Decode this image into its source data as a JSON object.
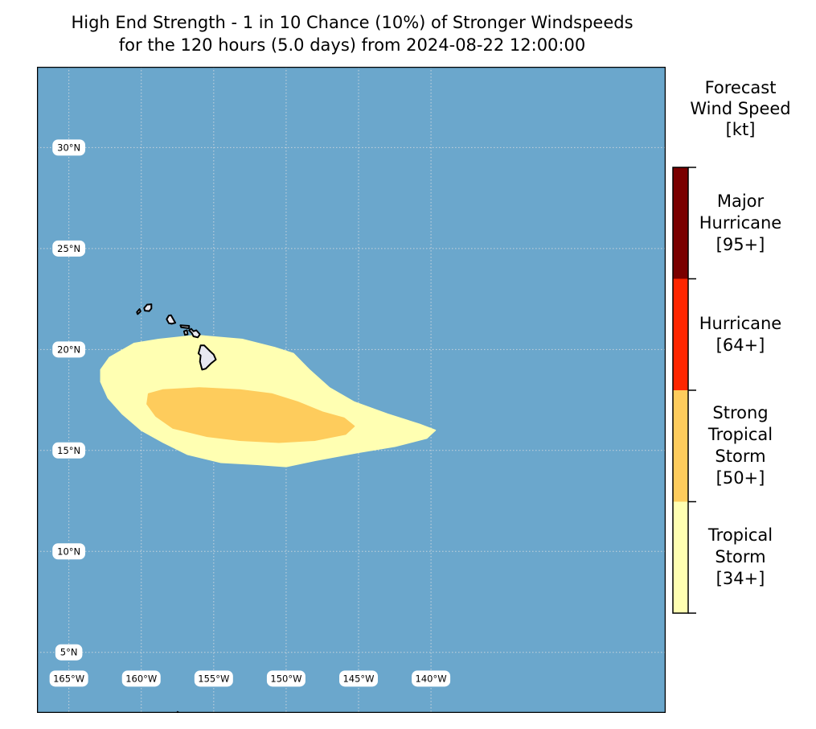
{
  "title": {
    "line1": "High End Strength - 1 in 10 Chance (10%) of Stronger Windspeeds",
    "line2": "for the 120 hours (5.0 days) from 2024-08-22 12:00:00"
  },
  "map": {
    "ocean_color": "#6ba7cc",
    "gridline_color": "#c8d3dc",
    "longitude_range": [
      -167.2,
      -123.8
    ],
    "latitude_range": [
      2.0,
      34.0
    ],
    "lat_labels": [
      {
        "lat": 30,
        "text": "30°N"
      },
      {
        "lat": 25,
        "text": "25°N"
      },
      {
        "lat": 20,
        "text": "20°N"
      },
      {
        "lat": 15,
        "text": "15°N"
      },
      {
        "lat": 10,
        "text": "10°N"
      },
      {
        "lat": 5,
        "text": "5°N"
      }
    ],
    "lon_labels": [
      {
        "lon": -165,
        "text": "165°W"
      },
      {
        "lon": -160,
        "text": "160°W"
      },
      {
        "lon": -155,
        "text": "155°W"
      },
      {
        "lon": -150,
        "text": "150°W"
      },
      {
        "lon": -145,
        "text": "145°W"
      },
      {
        "lon": -140,
        "text": "140°W"
      }
    ],
    "label_positions": {
      "lat_label_lon": -165.0,
      "lon_label_lat": 3.7
    },
    "zones": [
      {
        "name": "tropical-storm-zone",
        "color": "#ffffb2",
        "polygon": [
          [
            -162.8,
            19.0
          ],
          [
            -162.2,
            19.6
          ],
          [
            -160.5,
            20.3
          ],
          [
            -158.8,
            20.5
          ],
          [
            -156.2,
            20.7
          ],
          [
            -153.0,
            20.5
          ],
          [
            -150.8,
            20.1
          ],
          [
            -149.5,
            19.8
          ],
          [
            -148.4,
            19.0
          ],
          [
            -147.0,
            18.1
          ],
          [
            -145.3,
            17.4
          ],
          [
            -143.0,
            16.8
          ],
          [
            -140.8,
            16.3
          ],
          [
            -139.7,
            16.0
          ],
          [
            -140.3,
            15.6
          ],
          [
            -142.5,
            15.2
          ],
          [
            -145.0,
            14.9
          ],
          [
            -148.0,
            14.5
          ],
          [
            -150.0,
            14.2
          ],
          [
            -152.0,
            14.3
          ],
          [
            -154.5,
            14.4
          ],
          [
            -156.8,
            14.8
          ],
          [
            -158.5,
            15.4
          ],
          [
            -160.0,
            16.0
          ],
          [
            -161.3,
            16.8
          ],
          [
            -162.3,
            17.6
          ],
          [
            -162.8,
            18.4
          ]
        ]
      },
      {
        "name": "strong-tropical-storm-zone",
        "color": "#fecc5c",
        "polygon": [
          [
            -159.5,
            17.8
          ],
          [
            -158.5,
            18.0
          ],
          [
            -156.0,
            18.1
          ],
          [
            -153.2,
            18.0
          ],
          [
            -151.0,
            17.8
          ],
          [
            -149.2,
            17.4
          ],
          [
            -147.5,
            16.9
          ],
          [
            -146.0,
            16.6
          ],
          [
            -145.3,
            16.2
          ],
          [
            -145.9,
            15.8
          ],
          [
            -148.0,
            15.5
          ],
          [
            -150.5,
            15.4
          ],
          [
            -153.2,
            15.5
          ],
          [
            -155.5,
            15.7
          ],
          [
            -157.8,
            16.1
          ],
          [
            -159.0,
            16.7
          ],
          [
            -159.6,
            17.3
          ]
        ]
      }
    ],
    "islands": [
      {
        "name": "niihau-island",
        "polygon": [
          [
            -160.25,
            21.75
          ],
          [
            -160.05,
            21.88
          ],
          [
            -160.12,
            22.0
          ],
          [
            -160.3,
            21.85
          ]
        ]
      },
      {
        "name": "kauai-island",
        "polygon": [
          [
            -159.8,
            22.05
          ],
          [
            -159.6,
            22.22
          ],
          [
            -159.3,
            22.24
          ],
          [
            -159.3,
            22.03
          ],
          [
            -159.45,
            21.9
          ],
          [
            -159.75,
            21.92
          ]
        ]
      },
      {
        "name": "oahu-island",
        "polygon": [
          [
            -158.25,
            21.5
          ],
          [
            -158.1,
            21.68
          ],
          [
            -157.95,
            21.7
          ],
          [
            -157.65,
            21.32
          ],
          [
            -157.9,
            21.27
          ],
          [
            -158.1,
            21.3
          ]
        ]
      },
      {
        "name": "molokai-island",
        "polygon": [
          [
            -157.3,
            21.2
          ],
          [
            -157.25,
            21.1
          ],
          [
            -156.7,
            21.05
          ],
          [
            -156.7,
            21.17
          ]
        ]
      },
      {
        "name": "lanai-island",
        "polygon": [
          [
            -157.05,
            20.9
          ],
          [
            -156.85,
            20.95
          ],
          [
            -156.8,
            20.75
          ],
          [
            -156.98,
            20.72
          ]
        ]
      },
      {
        "name": "maui-island",
        "polygon": [
          [
            -156.7,
            20.95
          ],
          [
            -156.55,
            21.02
          ],
          [
            -156.4,
            20.9
          ],
          [
            -156.2,
            20.95
          ],
          [
            -155.95,
            20.75
          ],
          [
            -156.1,
            20.6
          ],
          [
            -156.4,
            20.65
          ],
          [
            -156.5,
            20.8
          ]
        ]
      },
      {
        "name": "big-island-hawaii",
        "polygon": [
          [
            -155.9,
            20.2
          ],
          [
            -155.65,
            20.2
          ],
          [
            -155.3,
            19.95
          ],
          [
            -155.0,
            19.75
          ],
          [
            -154.85,
            19.5
          ],
          [
            -155.2,
            19.3
          ],
          [
            -155.55,
            19.05
          ],
          [
            -155.8,
            19.0
          ],
          [
            -155.95,
            19.4
          ],
          [
            -155.9,
            19.7
          ],
          [
            -156.05,
            19.8
          ]
        ]
      },
      {
        "name": "southern-islet",
        "polygon": [
          [
            -157.5,
            2.05
          ],
          [
            -157.2,
            1.9
          ],
          [
            -157.15,
            1.75
          ],
          [
            -157.45,
            1.85
          ]
        ]
      }
    ]
  },
  "colorbar": {
    "title_lines": [
      "Forecast",
      "Wind Speed",
      "[kt]"
    ],
    "segments": [
      {
        "color": "#ffffb2",
        "lines": [
          "Tropical",
          "Storm",
          "[34+]"
        ]
      },
      {
        "color": "#fecc5c",
        "lines": [
          "Strong",
          "Tropical",
          "Storm",
          "[50+]"
        ]
      },
      {
        "color": "#ff2600",
        "lines": [
          "Hurricane",
          "[64+]"
        ]
      },
      {
        "color": "#7a0000",
        "lines": [
          "Major",
          "Hurricane",
          "[95+]"
        ]
      }
    ]
  }
}
